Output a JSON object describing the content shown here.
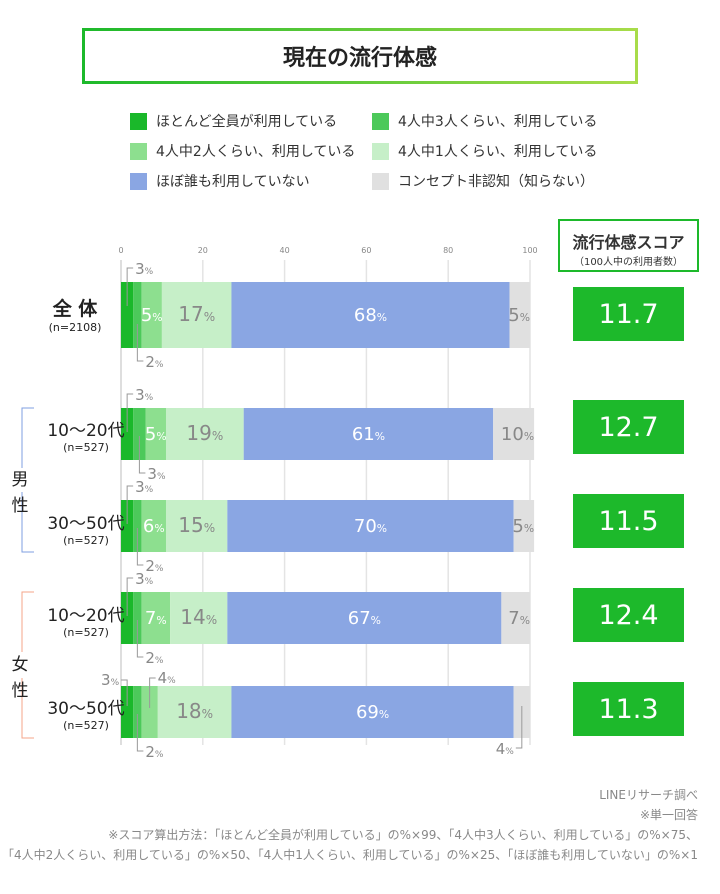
{
  "title": "現在の流行体感",
  "legend": [
    {
      "label": "ほとんど全員が利用している",
      "color": "#1ab82a"
    },
    {
      "label": "4人中3人くらい、利用している",
      "color": "#4cc95a"
    },
    {
      "label": "4人中2人くらい、利用している",
      "color": "#8ddf8f"
    },
    {
      "label": "4人中1人くらい、利用している",
      "color": "#c6efc8"
    },
    {
      "label": "ほぼ誰も利用していない",
      "color": "#8aa6e3"
    },
    {
      "label": "コンセプト非認知（知らない）",
      "color": "#e0e0e0"
    }
  ],
  "score_header": {
    "title": "流行体感スコア",
    "subtitle": "（100人中の利用者数）"
  },
  "genders": {
    "male": "男性",
    "female": "女性",
    "male_color": "#7f9fe0",
    "female_color": "#f4a58a"
  },
  "rows": [
    {
      "label": "全 体",
      "n": "(n=2108)",
      "score": "11.7"
    },
    {
      "label": "10〜20代",
      "n": "(n=527)",
      "score": "12.7"
    },
    {
      "label": "30〜50代",
      "n": "(n=527)",
      "score": "11.5"
    },
    {
      "label": "10〜20代",
      "n": "(n=527)",
      "score": "12.4"
    },
    {
      "label": "30〜50代",
      "n": "(n=527)",
      "score": "11.3"
    }
  ],
  "chart_data": {
    "type": "bar",
    "orientation": "horizontal-stacked",
    "xlim": [
      0,
      100
    ],
    "xticks": [
      "0",
      "20",
      "40",
      "60",
      "80",
      "100"
    ],
    "grid": true,
    "categories": [
      "全体",
      "男性 10〜20代",
      "男性 30〜50代",
      "女性 10〜20代",
      "女性 30〜50代"
    ],
    "series": [
      {
        "name": "ほとんど全員が利用している",
        "values": [
          3,
          3,
          3,
          3,
          3
        ]
      },
      {
        "name": "4人中3人くらい、利用している",
        "values": [
          2,
          3,
          2,
          2,
          2
        ]
      },
      {
        "name": "4人中2人くらい、利用している",
        "values": [
          5,
          5,
          6,
          7,
          4
        ]
      },
      {
        "name": "4人中1人くらい、利用している",
        "values": [
          17,
          19,
          15,
          14,
          18
        ]
      },
      {
        "name": "ほぼ誰も利用していない",
        "values": [
          68,
          61,
          70,
          67,
          69
        ]
      },
      {
        "name": "コンセプト非認知（知らない）",
        "values": [
          5,
          10,
          5,
          7,
          4
        ]
      }
    ],
    "unit": "%"
  },
  "notes": [
    "LINEリサーチ調べ",
    "※単一回答",
    "※スコア算出方法：「ほとんど全員が利用している」の%×99、「4人中3人くらい、利用している」の%×75、",
    "「4人中2人くらい、利用している」の%×50、「4人中1人くらい、利用している」の%×25、「ほぼ誰も利用していない」の%×1"
  ]
}
